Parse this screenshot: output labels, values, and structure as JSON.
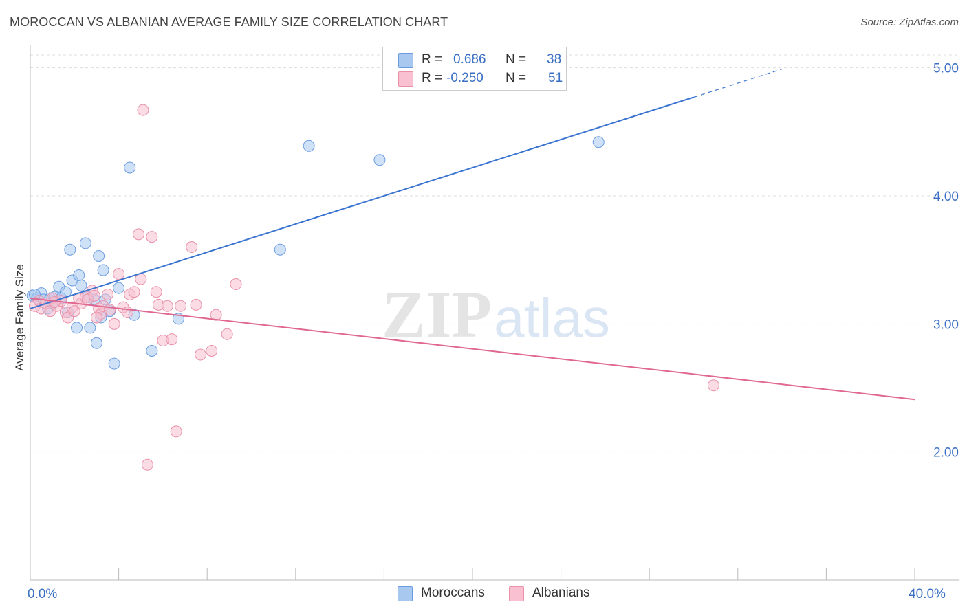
{
  "header": {
    "title": "MOROCCAN VS ALBANIAN AVERAGE FAMILY SIZE CORRELATION CHART",
    "source": "Source: ZipAtlas.com"
  },
  "legend": {
    "rows": [
      {
        "r_label": "R =",
        "r_value": "0.686",
        "n_label": "N =",
        "n_value": "38",
        "color": "#a8c8f0",
        "border": "#6c9ce0"
      },
      {
        "r_label": "R =",
        "r_value": "-0.250",
        "n_label": "N =",
        "n_value": "51",
        "color": "#f8c0d0",
        "border": "#e890a8"
      }
    ]
  },
  "bottom_legend": [
    {
      "label": "Moroccans",
      "color": "#a8c8f0",
      "border": "#6c9ce0"
    },
    {
      "label": "Albanians",
      "color": "#f8c0d0",
      "border": "#e890a8"
    }
  ],
  "watermark": {
    "zip": "ZIP",
    "atlas": "atlas"
  },
  "chart_data": {
    "type": "scatter",
    "title": "MOROCCAN VS ALBANIAN AVERAGE FAMILY SIZE CORRELATION CHART",
    "xlabel": "",
    "ylabel": "Average Family Size",
    "xlim": [
      0,
      40
    ],
    "ylim": [
      1.0,
      5.1
    ],
    "x_tick_labels": [
      {
        "value": 0,
        "label": "0.0%"
      },
      {
        "value": 40,
        "label": "40.0%"
      }
    ],
    "x_minor_ticks": [
      4,
      8,
      12,
      16,
      20,
      24,
      28,
      32,
      36,
      40
    ],
    "y_ticks": [
      {
        "value": 2,
        "label": "2.00"
      },
      {
        "value": 3,
        "label": "3.00"
      },
      {
        "value": 4,
        "label": "4.00"
      },
      {
        "value": 5,
        "label": "5.00"
      }
    ],
    "grid": true,
    "series": [
      {
        "name": "Moroccans",
        "color": "#6c9ce0",
        "fill": "#a8c8f0",
        "line_color": "#3a74d0",
        "trend": {
          "x0": 0.0,
          "y0": 3.12,
          "x1": 30.0,
          "y1": 4.77,
          "dash_x1": 34.0,
          "dash_y1": 4.99
        },
        "points": [
          {
            "x": 0.1,
            "y": 3.22
          },
          {
            "x": 0.3,
            "y": 3.2
          },
          {
            "x": 0.5,
            "y": 3.24
          },
          {
            "x": 0.6,
            "y": 3.19
          },
          {
            "x": 0.8,
            "y": 3.12
          },
          {
            "x": 0.9,
            "y": 3.2
          },
          {
            "x": 1.0,
            "y": 3.16
          },
          {
            "x": 1.1,
            "y": 3.21
          },
          {
            "x": 1.3,
            "y": 3.29
          },
          {
            "x": 1.4,
            "y": 3.2
          },
          {
            "x": 1.6,
            "y": 3.25
          },
          {
            "x": 1.7,
            "y": 3.09
          },
          {
            "x": 1.8,
            "y": 3.58
          },
          {
            "x": 1.9,
            "y": 3.34
          },
          {
            "x": 2.1,
            "y": 2.97
          },
          {
            "x": 2.2,
            "y": 3.38
          },
          {
            "x": 2.3,
            "y": 3.3
          },
          {
            "x": 2.5,
            "y": 3.63
          },
          {
            "x": 2.6,
            "y": 3.21
          },
          {
            "x": 2.7,
            "y": 2.97
          },
          {
            "x": 2.9,
            "y": 3.19
          },
          {
            "x": 3.0,
            "y": 2.85
          },
          {
            "x": 3.1,
            "y": 3.53
          },
          {
            "x": 3.2,
            "y": 3.05
          },
          {
            "x": 3.3,
            "y": 3.42
          },
          {
            "x": 3.4,
            "y": 3.19
          },
          {
            "x": 3.6,
            "y": 3.1
          },
          {
            "x": 3.8,
            "y": 2.69
          },
          {
            "x": 4.0,
            "y": 3.28
          },
          {
            "x": 4.5,
            "y": 4.22
          },
          {
            "x": 4.7,
            "y": 3.07
          },
          {
            "x": 5.5,
            "y": 2.79
          },
          {
            "x": 6.7,
            "y": 3.04
          },
          {
            "x": 11.3,
            "y": 3.58
          },
          {
            "x": 12.6,
            "y": 4.39
          },
          {
            "x": 15.8,
            "y": 4.28
          },
          {
            "x": 25.7,
            "y": 4.42
          },
          {
            "x": 0.2,
            "y": 3.23
          }
        ]
      },
      {
        "name": "Albanians",
        "color": "#e890a8",
        "fill": "#f8c0d0",
        "line_color": "#e06890",
        "trend": {
          "x0": 0.0,
          "y0": 3.2,
          "x1": 40.0,
          "y1": 2.41
        },
        "points": [
          {
            "x": 0.2,
            "y": 3.14
          },
          {
            "x": 0.4,
            "y": 3.18
          },
          {
            "x": 0.5,
            "y": 3.12
          },
          {
            "x": 0.7,
            "y": 3.16
          },
          {
            "x": 0.9,
            "y": 3.1
          },
          {
            "x": 1.0,
            "y": 3.2
          },
          {
            "x": 1.2,
            "y": 3.14
          },
          {
            "x": 1.4,
            "y": 3.18
          },
          {
            "x": 1.6,
            "y": 3.09
          },
          {
            "x": 1.7,
            "y": 3.05
          },
          {
            "x": 1.9,
            "y": 3.13
          },
          {
            "x": 2.0,
            "y": 3.1
          },
          {
            "x": 2.2,
            "y": 3.2
          },
          {
            "x": 2.3,
            "y": 3.16
          },
          {
            "x": 2.5,
            "y": 3.21
          },
          {
            "x": 2.6,
            "y": 3.19
          },
          {
            "x": 2.8,
            "y": 3.26
          },
          {
            "x": 2.9,
            "y": 3.22
          },
          {
            "x": 3.1,
            "y": 3.12
          },
          {
            "x": 3.2,
            "y": 3.08
          },
          {
            "x": 3.3,
            "y": 3.14
          },
          {
            "x": 3.5,
            "y": 3.23
          },
          {
            "x": 3.6,
            "y": 3.11
          },
          {
            "x": 3.8,
            "y": 3.0
          },
          {
            "x": 4.0,
            "y": 3.39
          },
          {
            "x": 4.2,
            "y": 3.13
          },
          {
            "x": 4.4,
            "y": 3.09
          },
          {
            "x": 4.5,
            "y": 3.23
          },
          {
            "x": 4.7,
            "y": 3.25
          },
          {
            "x": 4.9,
            "y": 3.7
          },
          {
            "x": 5.0,
            "y": 3.35
          },
          {
            "x": 5.1,
            "y": 4.67
          },
          {
            "x": 5.3,
            "y": 1.9
          },
          {
            "x": 5.5,
            "y": 3.68
          },
          {
            "x": 5.7,
            "y": 3.25
          },
          {
            "x": 5.8,
            "y": 3.15
          },
          {
            "x": 6.0,
            "y": 2.87
          },
          {
            "x": 6.2,
            "y": 3.14
          },
          {
            "x": 6.4,
            "y": 2.88
          },
          {
            "x": 6.6,
            "y": 2.16
          },
          {
            "x": 6.8,
            "y": 3.14
          },
          {
            "x": 7.3,
            "y": 3.6
          },
          {
            "x": 7.5,
            "y": 3.15
          },
          {
            "x": 7.7,
            "y": 2.76
          },
          {
            "x": 8.2,
            "y": 2.79
          },
          {
            "x": 8.4,
            "y": 3.07
          },
          {
            "x": 8.9,
            "y": 2.92
          },
          {
            "x": 9.3,
            "y": 3.31
          },
          {
            "x": 30.9,
            "y": 2.52
          },
          {
            "x": 1.1,
            "y": 3.17
          },
          {
            "x": 3.0,
            "y": 3.05
          }
        ]
      }
    ]
  }
}
